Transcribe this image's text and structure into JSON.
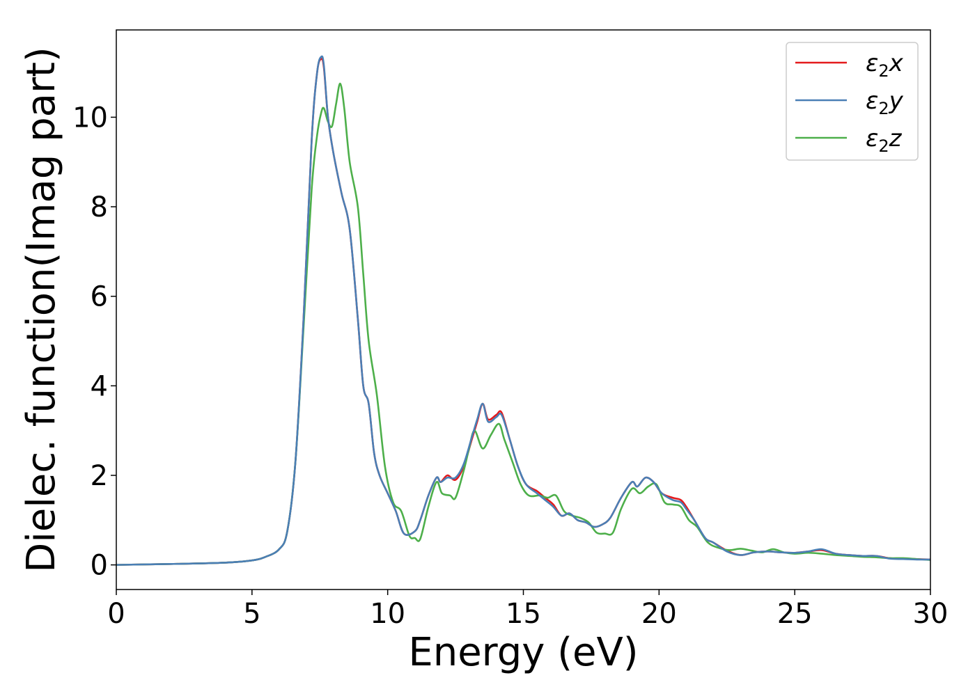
{
  "chart_data": {
    "type": "line",
    "title": "",
    "xlabel": "Energy (eV)",
    "ylabel": "Dielec. function(Imag part)",
    "xlim": [
      0,
      30
    ],
    "ylim": [
      -0.55,
      11.95
    ],
    "xticks": [
      0,
      5,
      10,
      15,
      20,
      25,
      30
    ],
    "yticks": [
      0,
      2,
      4,
      6,
      8,
      10
    ],
    "grid": false,
    "legend_position": "top-right",
    "series": [
      {
        "name": "ε₂x",
        "legend_base": "ε",
        "legend_sub": "2",
        "legend_suffix": "x",
        "color": "#e41a1c",
        "x": [
          0,
          2,
          4,
          5,
          5.5,
          6,
          6.3,
          6.6,
          6.9,
          7.2,
          7.4,
          7.55,
          7.65,
          7.8,
          8.0,
          8.3,
          8.6,
          8.9,
          9.1,
          9.3,
          9.5,
          9.7,
          10.0,
          10.3,
          10.6,
          11.0,
          11.2,
          11.5,
          11.8,
          11.95,
          12.2,
          12.5,
          12.8,
          13.1,
          13.3,
          13.5,
          13.7,
          14.0,
          14.2,
          14.5,
          14.8,
          15.1,
          15.5,
          15.8,
          16.1,
          16.4,
          16.7,
          17.0,
          17.3,
          17.6,
          17.9,
          18.2,
          18.6,
          19.0,
          19.2,
          19.5,
          19.8,
          20.1,
          20.5,
          20.8,
          21.0,
          21.3,
          21.7,
          22.0,
          22.5,
          23.0,
          23.5,
          24.0,
          24.5,
          25.0,
          25.5,
          26.0,
          26.5,
          27.0,
          27.5,
          28.0,
          28.5,
          29.0,
          29.5,
          30.0
        ],
        "y": [
          0.0,
          0.02,
          0.05,
          0.1,
          0.18,
          0.35,
          0.75,
          2.3,
          5.5,
          9.5,
          11.0,
          11.3,
          11.1,
          10.0,
          9.2,
          8.3,
          7.5,
          5.5,
          4.0,
          3.6,
          2.5,
          2.0,
          1.6,
          1.2,
          0.7,
          0.75,
          1.0,
          1.55,
          1.95,
          1.85,
          2.0,
          1.9,
          2.2,
          2.8,
          3.2,
          3.6,
          3.25,
          3.35,
          3.4,
          2.8,
          2.2,
          1.8,
          1.65,
          1.5,
          1.35,
          1.1,
          1.15,
          1.0,
          0.95,
          0.85,
          0.9,
          1.05,
          1.5,
          1.85,
          1.75,
          1.95,
          1.85,
          1.6,
          1.5,
          1.45,
          1.3,
          1.0,
          0.6,
          0.5,
          0.32,
          0.22,
          0.28,
          0.3,
          0.28,
          0.27,
          0.3,
          0.33,
          0.25,
          0.22,
          0.2,
          0.2,
          0.15,
          0.14,
          0.13,
          0.12
        ]
      },
      {
        "name": "ε₂y",
        "legend_base": "ε",
        "legend_sub": "2",
        "legend_suffix": "y",
        "color": "#4a7fb5",
        "x": [
          0,
          2,
          4,
          5,
          5.5,
          6,
          6.3,
          6.6,
          6.9,
          7.2,
          7.4,
          7.55,
          7.65,
          7.8,
          8.0,
          8.3,
          8.6,
          8.9,
          9.1,
          9.3,
          9.5,
          9.7,
          10.0,
          10.3,
          10.6,
          11.0,
          11.2,
          11.5,
          11.8,
          11.95,
          12.2,
          12.5,
          12.8,
          13.1,
          13.3,
          13.5,
          13.7,
          14.0,
          14.2,
          14.5,
          14.8,
          15.1,
          15.5,
          15.8,
          16.1,
          16.4,
          16.7,
          17.0,
          17.3,
          17.6,
          17.9,
          18.2,
          18.6,
          19.0,
          19.2,
          19.5,
          19.8,
          20.1,
          20.5,
          20.8,
          21.0,
          21.3,
          21.7,
          22.0,
          22.5,
          23.0,
          23.5,
          24.0,
          24.5,
          25.0,
          25.5,
          26.0,
          26.5,
          27.0,
          27.5,
          28.0,
          28.5,
          29.0,
          29.5,
          30.0
        ],
        "y": [
          0.0,
          0.02,
          0.05,
          0.1,
          0.18,
          0.35,
          0.75,
          2.3,
          5.5,
          9.5,
          11.0,
          11.35,
          11.15,
          10.0,
          9.2,
          8.3,
          7.5,
          5.5,
          4.0,
          3.6,
          2.5,
          2.0,
          1.6,
          1.2,
          0.7,
          0.75,
          1.0,
          1.55,
          1.95,
          1.85,
          1.95,
          1.95,
          2.25,
          2.85,
          3.25,
          3.6,
          3.2,
          3.3,
          3.35,
          2.8,
          2.2,
          1.8,
          1.6,
          1.45,
          1.3,
          1.1,
          1.15,
          1.0,
          0.95,
          0.85,
          0.9,
          1.05,
          1.5,
          1.85,
          1.75,
          1.95,
          1.85,
          1.6,
          1.45,
          1.4,
          1.25,
          1.0,
          0.6,
          0.5,
          0.3,
          0.22,
          0.28,
          0.3,
          0.28,
          0.27,
          0.3,
          0.35,
          0.25,
          0.22,
          0.2,
          0.2,
          0.14,
          0.13,
          0.12,
          0.12
        ]
      },
      {
        "name": "ε₂z",
        "legend_base": "ε",
        "legend_sub": "2",
        "legend_suffix": "z",
        "color": "#4daf4a",
        "x": [
          0,
          2,
          4,
          5,
          5.5,
          6,
          6.3,
          6.6,
          6.9,
          7.2,
          7.4,
          7.55,
          7.65,
          7.8,
          7.95,
          8.1,
          8.25,
          8.4,
          8.6,
          8.9,
          9.1,
          9.3,
          9.6,
          9.9,
          10.2,
          10.5,
          10.8,
          11.0,
          11.2,
          11.5,
          11.8,
          12.0,
          12.3,
          12.5,
          12.8,
          13.0,
          13.2,
          13.5,
          13.8,
          14.1,
          14.3,
          14.6,
          14.9,
          15.2,
          15.6,
          15.9,
          16.2,
          16.5,
          16.8,
          17.1,
          17.4,
          17.7,
          18.0,
          18.3,
          18.6,
          19.0,
          19.3,
          19.6,
          19.9,
          20.2,
          20.5,
          20.8,
          21.1,
          21.4,
          21.8,
          22.2,
          22.6,
          23.0,
          23.4,
          23.8,
          24.2,
          24.6,
          25.0,
          25.5,
          26.0,
          26.5,
          27.0,
          27.5,
          28.0,
          28.5,
          29.0,
          29.5,
          30.0
        ],
        "y": [
          0.0,
          0.02,
          0.05,
          0.1,
          0.18,
          0.35,
          0.75,
          2.3,
          5.3,
          8.4,
          9.6,
          10.1,
          10.2,
          9.9,
          9.8,
          10.3,
          10.75,
          10.2,
          9.0,
          8.0,
          6.5,
          5.0,
          3.8,
          2.2,
          1.4,
          1.2,
          0.65,
          0.6,
          0.58,
          1.3,
          1.85,
          1.6,
          1.55,
          1.5,
          2.1,
          2.6,
          3.0,
          2.6,
          2.9,
          3.15,
          2.8,
          2.3,
          1.8,
          1.55,
          1.55,
          1.5,
          1.55,
          1.2,
          1.1,
          1.05,
          0.95,
          0.72,
          0.7,
          0.72,
          1.25,
          1.7,
          1.6,
          1.75,
          1.8,
          1.4,
          1.35,
          1.3,
          1.0,
          0.85,
          0.5,
          0.38,
          0.33,
          0.36,
          0.32,
          0.28,
          0.35,
          0.28,
          0.25,
          0.27,
          0.25,
          0.22,
          0.2,
          0.18,
          0.17,
          0.15,
          0.15,
          0.13,
          0.11
        ]
      }
    ]
  }
}
